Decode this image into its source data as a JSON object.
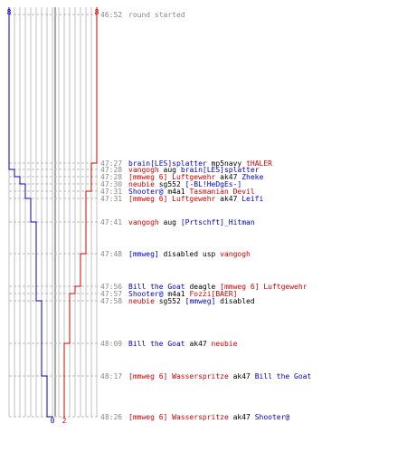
{
  "header": {
    "time": "46:52",
    "event": "round started",
    "blue_start_count": "8",
    "red_start_count": "8",
    "blue_end_count": "0",
    "red_end_count": "2"
  },
  "colors": {
    "blue": "#0000c8",
    "red": "#d00000",
    "gray_text": "#888888",
    "grid": "#c0c0c0",
    "dash": "#bbbbbb",
    "center": "#505050"
  },
  "events": [
    {
      "time": "47:27",
      "parts": [
        {
          "text": "brain[LES]splatter",
          "team": "blue"
        },
        {
          "text": " mp5navy ",
          "team": "neutral"
        },
        {
          "text": "tHALER",
          "team": "red"
        }
      ],
      "blue": 8,
      "red": 7
    },
    {
      "time": "47:28",
      "parts": [
        {
          "text": "vangogh",
          "team": "red"
        },
        {
          "text": " aug ",
          "team": "neutral"
        },
        {
          "text": "brain[LES]splatter",
          "team": "blue"
        }
      ],
      "blue": 7,
      "red": 7
    },
    {
      "time": "47:28",
      "parts": [
        {
          "text": "[mmweg 6] Luftgewehr",
          "team": "red"
        },
        {
          "text": " ak47 ",
          "team": "neutral"
        },
        {
          "text": "Zheke",
          "team": "blue"
        }
      ],
      "blue": 6,
      "red": 7
    },
    {
      "time": "47:30",
      "parts": [
        {
          "text": "neubie",
          "team": "red"
        },
        {
          "text": " sg552 ",
          "team": "neutral"
        },
        {
          "text": "[-BL!HeDgEs-]",
          "team": "blue"
        }
      ],
      "blue": 5,
      "red": 7
    },
    {
      "time": "47:31",
      "parts": [
        {
          "text": "Shooter@",
          "team": "blue"
        },
        {
          "text": " m4a1 ",
          "team": "neutral"
        },
        {
          "text": "Tasmanian Devil",
          "team": "red"
        }
      ],
      "blue": 5,
      "red": 6
    },
    {
      "time": "47:31",
      "parts": [
        {
          "text": "[mmweg 6] Luftgewehr",
          "team": "red"
        },
        {
          "text": " ak47 ",
          "team": "neutral"
        },
        {
          "text": "Leifi",
          "team": "blue"
        }
      ],
      "blue": 4,
      "red": 6
    },
    {
      "time": "47:41",
      "parts": [
        {
          "text": "vangogh",
          "team": "red"
        },
        {
          "text": " aug ",
          "team": "neutral"
        },
        {
          "text": "[Prtschft]_Hitman",
          "team": "blue"
        }
      ],
      "blue": 3,
      "red": 6
    },
    {
      "time": "47:48",
      "parts": [
        {
          "text": "[mmweg]",
          "team": "blue"
        },
        {
          "text": " disabled usp ",
          "team": "neutral"
        },
        {
          "text": "vangogh",
          "team": "red"
        }
      ],
      "blue": 3,
      "red": 5
    },
    {
      "time": "47:56",
      "parts": [
        {
          "text": "Bill the Goat",
          "team": "blue"
        },
        {
          "text": " deagle ",
          "team": "neutral"
        },
        {
          "text": "[mmweg 6] Luftgewehr",
          "team": "red"
        }
      ],
      "blue": 3,
      "red": 4
    },
    {
      "time": "47:57",
      "parts": [
        {
          "text": "Shooter@",
          "team": "blue"
        },
        {
          "text": " m4a1 ",
          "team": "neutral"
        },
        {
          "text": "Fozzi[BAER]",
          "team": "red"
        }
      ],
      "blue": 3,
      "red": 3
    },
    {
      "time": "47:58",
      "parts": [
        {
          "text": "neubie",
          "team": "red"
        },
        {
          "text": " sg552 ",
          "team": "neutral"
        },
        {
          "text": "[mmweg]",
          "team": "blue"
        },
        {
          "text": " disabled",
          "team": "neutral"
        }
      ],
      "blue": 2,
      "red": 3
    },
    {
      "time": "48:09",
      "parts": [
        {
          "text": "Bill the Goat",
          "team": "blue"
        },
        {
          "text": " ak47 ",
          "team": "neutral"
        },
        {
          "text": "neubie",
          "team": "red"
        }
      ],
      "blue": 2,
      "red": 2
    },
    {
      "time": "48:17",
      "parts": [
        {
          "text": "[mmweg 6] Wasserspritze",
          "team": "red"
        },
        {
          "text": " ak47 ",
          "team": "neutral"
        },
        {
          "text": "Bill the Goat",
          "team": "blue"
        }
      ],
      "blue": 1,
      "red": 2
    },
    {
      "time": "48:26",
      "parts": [
        {
          "text": "[mmweg 6] Wasserspritze",
          "team": "red"
        },
        {
          "text": " ak47 ",
          "team": "neutral"
        },
        {
          "text": "Shooter@",
          "team": "blue"
        }
      ],
      "blue": 0,
      "red": 2
    }
  ]
}
